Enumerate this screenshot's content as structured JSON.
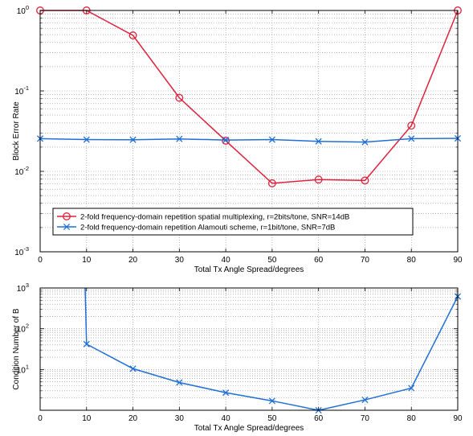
{
  "chart_data": [
    {
      "type": "line",
      "xlabel": "Total Tx Angle Spread/degrees",
      "ylabel": "Block Error Rate",
      "xlim": [
        0,
        90
      ],
      "xticks": [
        "0",
        "10",
        "20",
        "30",
        "40",
        "50",
        "60",
        "70",
        "80",
        "90"
      ],
      "yscale": "log",
      "ylim": [
        0.001,
        1
      ],
      "ytick_labels": [
        {
          "base": "10",
          "exp": "-3"
        },
        {
          "base": "10",
          "exp": "-2"
        },
        {
          "base": "10",
          "exp": "-1"
        },
        {
          "base": "10",
          "exp": "0"
        }
      ],
      "grid": true,
      "legend_position": "lower-left",
      "x": [
        0,
        10,
        20,
        30,
        40,
        50,
        60,
        70,
        80,
        90
      ],
      "series": [
        {
          "name": "2-fold frequency-domain repetition spatial multiplexing, r=2bits/tone, SNR=14dB",
          "marker": "circle",
          "color": "#e0203a",
          "values": [
            1.0,
            1.0,
            0.49,
            0.082,
            0.024,
            0.0071,
            0.0079,
            0.0077,
            0.037,
            1.0
          ]
        },
        {
          "name": "2-fold frequency-domain repetition Alamouti scheme, r=1bit/tone, SNR=7dB",
          "marker": "x",
          "color": "#1f6fd6",
          "values": [
            0.0255,
            0.0248,
            0.0247,
            0.0253,
            0.0245,
            0.0248,
            0.0236,
            0.0231,
            0.0255,
            0.0257
          ]
        }
      ]
    },
    {
      "type": "line",
      "xlabel": "Total Tx Angle Spread/degrees",
      "ylabel": "Condition Number of B",
      "xlim": [
        0,
        90
      ],
      "xticks": [
        "0",
        "10",
        "20",
        "30",
        "40",
        "50",
        "60",
        "70",
        "80",
        "90"
      ],
      "yscale": "log",
      "ylim": [
        1,
        1000
      ],
      "ytick_labels": [
        {
          "base": "10",
          "exp": "1"
        },
        {
          "base": "10",
          "exp": "2"
        },
        {
          "base": "10",
          "exp": "3"
        }
      ],
      "grid": true,
      "x": [
        9.7,
        10,
        20,
        30,
        40,
        50,
        60,
        70,
        80,
        90
      ],
      "series": [
        {
          "marker": "x",
          "color": "#1f6fd6",
          "values": [
            1000,
            42,
            10.5,
            4.8,
            2.7,
            1.7,
            1.0,
            1.8,
            3.5,
            620
          ]
        }
      ]
    }
  ]
}
